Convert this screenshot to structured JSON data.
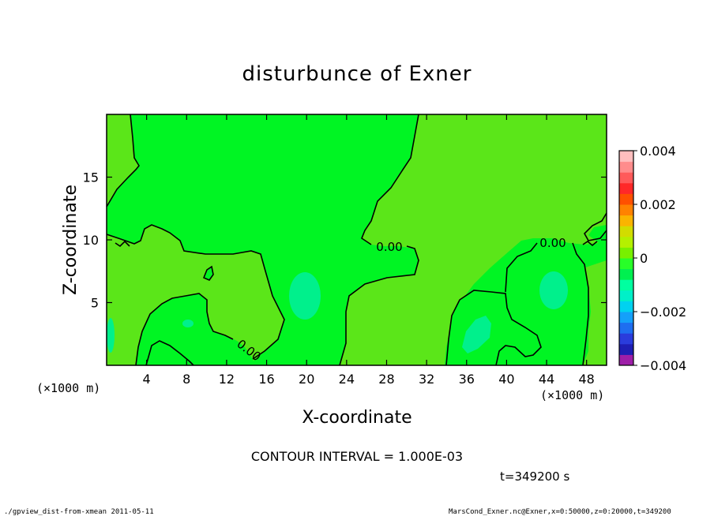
{
  "chart_data": {
    "type": "heatmap",
    "title": "disturbunce of Exner",
    "xlabel": "X-coordinate",
    "ylabel": "Z-coordinate",
    "x_scale_note": "(×1000 m)",
    "y_scale_note": "(×1000 m)",
    "xlim": [
      0,
      50
    ],
    "ylim": [
      0,
      20
    ],
    "xticks": [
      4,
      8,
      12,
      16,
      20,
      24,
      28,
      32,
      36,
      40,
      44,
      48
    ],
    "yticks": [
      5,
      10,
      15
    ],
    "colorbar": {
      "range": [
        -0.004,
        0.004
      ],
      "tick_labels": [
        "0.004",
        "0.002",
        "0",
        "−0.002",
        "−0.004"
      ],
      "tick_values": [
        0.004,
        0.002,
        0,
        -0.002,
        -0.004
      ],
      "colors": [
        "#9e1ea8",
        "#1e1eb4",
        "#2a3cdc",
        "#1e6ef0",
        "#14a0fa",
        "#00d2f0",
        "#00f0c8",
        "#00ffa0",
        "#00f050",
        "#28ff28",
        "#78f000",
        "#b4f000",
        "#d2dc00",
        "#fab400",
        "#ff8200",
        "#ff5000",
        "#ff2828",
        "#ff5a5a",
        "#ff8c8c",
        "#ffbebe"
      ]
    },
    "contour_labels": [
      "0.00",
      "0.00",
      "0.00"
    ],
    "field_colors": {
      "positive": "#5be619",
      "zero_band": "#00f523",
      "negative": "#00f08c"
    },
    "contour_interval_label": "CONTOUR INTERVAL = 1.000E-03",
    "time_label": "t=349200 s",
    "footer_left": "./gpview_dist-from-xmean  2011-05-11",
    "footer_right": "MarsCond_Exner.nc@Exner,x=0:50000,z=0:20000,t=349200"
  }
}
